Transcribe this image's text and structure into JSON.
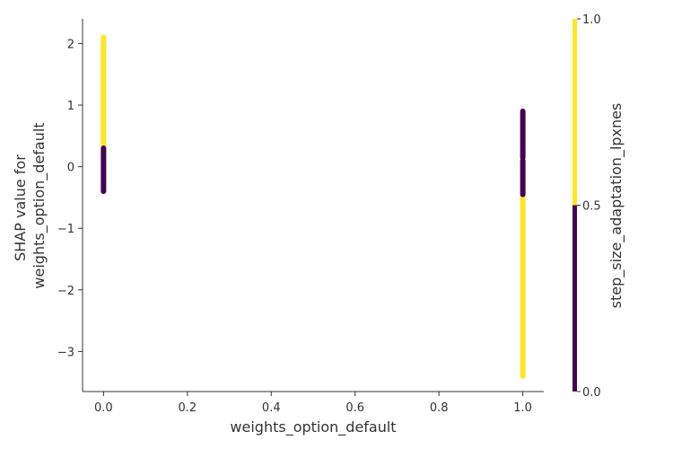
{
  "chart_data": {
    "type": "scatter",
    "title": "",
    "xlabel": "weights_option_default",
    "ylabel_lines": [
      "SHAP value for",
      "weights_option_default"
    ],
    "xlim": [
      -0.05,
      1.05
    ],
    "ylim": [
      -3.65,
      2.4
    ],
    "xticks": [
      0.0,
      0.2,
      0.4,
      0.6,
      0.8,
      1.0
    ],
    "xtick_labels": [
      "0.0",
      "0.2",
      "0.4",
      "0.6",
      "0.8",
      "1.0"
    ],
    "yticks": [
      -3,
      -2,
      -1,
      0,
      1,
      2
    ],
    "ytick_labels": [
      "−3",
      "−2",
      "−1",
      "0",
      "1",
      "2"
    ],
    "grid": false,
    "colorbar": {
      "label": "step_size_adaptation_lpxnes",
      "range": [
        0.0,
        1.0
      ],
      "ticks": [
        0.0,
        0.5,
        1.0
      ],
      "tick_labels": [
        "0.0",
        "0.5",
        "1.0"
      ],
      "low_color": "#440154",
      "high_color": "#fde725"
    },
    "series": [
      {
        "color_value": 1.0,
        "color": "#fde725",
        "segments": [
          {
            "x": 0.0,
            "y_min": 0.25,
            "y_max": 2.1
          },
          {
            "x": 1.0,
            "y_min": -3.4,
            "y_max": -0.45
          },
          {
            "x": 1.0,
            "y_min": 0.05,
            "y_max": 0.15
          }
        ]
      },
      {
        "color_value": 0.0,
        "color": "#440154",
        "segments": [
          {
            "x": 0.0,
            "y_min": -0.4,
            "y_max": 0.3
          },
          {
            "x": 1.0,
            "y_min": -0.45,
            "y_max": 0.1
          },
          {
            "x": 1.0,
            "y_min": 0.15,
            "y_max": 0.9
          }
        ]
      }
    ]
  }
}
